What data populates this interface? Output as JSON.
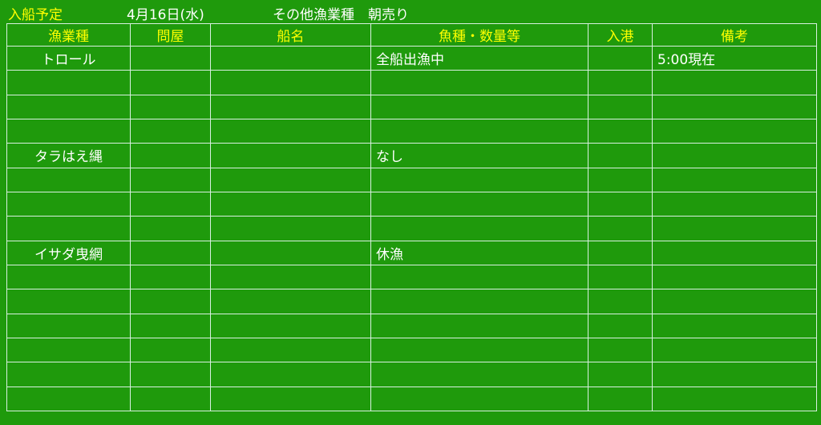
{
  "header": {
    "title": "入船予定",
    "date": "4月16日(水)",
    "category": "その他漁業種　朝売り"
  },
  "table": {
    "columns": [
      "漁業種",
      "問屋",
      "船名",
      "魚種・数量等",
      "入港",
      "備考"
    ],
    "rows": [
      [
        "トロール",
        "",
        "",
        "全船出漁中",
        "",
        "5:00現在"
      ],
      [
        "",
        "",
        "",
        "",
        "",
        ""
      ],
      [
        "",
        "",
        "",
        "",
        "",
        ""
      ],
      [
        "",
        "",
        "",
        "",
        "",
        ""
      ],
      [
        "タラはえ縄",
        "",
        "",
        "なし",
        "",
        ""
      ],
      [
        "",
        "",
        "",
        "",
        "",
        ""
      ],
      [
        "",
        "",
        "",
        "",
        "",
        ""
      ],
      [
        "",
        "",
        "",
        "",
        "",
        ""
      ],
      [
        "イサダ曳網",
        "",
        "",
        "休漁",
        "",
        ""
      ],
      [
        "",
        "",
        "",
        "",
        "",
        ""
      ],
      [
        "",
        "",
        "",
        "",
        "",
        ""
      ],
      [
        "",
        "",
        "",
        "",
        "",
        ""
      ],
      [
        "",
        "",
        "",
        "",
        "",
        ""
      ],
      [
        "",
        "",
        "",
        "",
        "",
        ""
      ],
      [
        "",
        "",
        "",
        "",
        "",
        ""
      ]
    ]
  },
  "colors": {
    "background": "#1f9a0c",
    "header_text": "#ffff00",
    "body_text": "#ffffff",
    "grid": "#d8f0e0"
  }
}
